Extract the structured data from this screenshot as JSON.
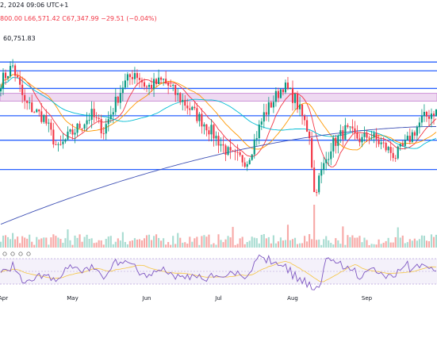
{
  "header": {
    "line1": "2, 2024 09:06 UTC+1",
    "open_tail": "800.00",
    "low": "L66,571.42",
    "close": "C67,347.99",
    "change": "−29.51 (−0.04%)"
  },
  "annotation": {
    "value": "60,751.83"
  },
  "colors": {
    "up": "#089981",
    "down": "#f23645",
    "vol_up": "#a8dcd1",
    "vol_down": "#f7a9a7",
    "level": "#2962ff",
    "zone": "#ce93d8",
    "ma_fast": "#f23645",
    "ma_mid": "#ff9800",
    "ma_slow": "#00bcd4",
    "ma_long": "#3f51b5",
    "rsi": "#7e57c2",
    "rsi_signal": "#f5c542"
  },
  "chart_data": {
    "type": "candlestick",
    "x_axis_labels": [
      "Apr",
      "May",
      "Jun",
      "Jul",
      "Aug",
      "Sep"
    ],
    "horizontal_levels": [
      72200,
      71300,
      69500,
      66700,
      64200,
      61200
    ],
    "resistance_zone": [
      69000,
      68200
    ],
    "price_range_visible": [
      55000,
      74000
    ],
    "annotated_low": 60751.83,
    "last_close": 67347.99,
    "close_path_anchors": [
      {
        "day": 0,
        "close": 70200
      },
      {
        "day": 5,
        "close": 71800
      },
      {
        "day": 10,
        "close": 68000
      },
      {
        "day": 18,
        "close": 66500
      },
      {
        "day": 24,
        "close": 63200
      },
      {
        "day": 28,
        "close": 64500
      },
      {
        "day": 38,
        "close": 66800
      },
      {
        "day": 43,
        "close": 65200
      },
      {
        "day": 51,
        "close": 69800
      },
      {
        "day": 56,
        "close": 71200
      },
      {
        "day": 61,
        "close": 69600
      },
      {
        "day": 68,
        "close": 70300
      },
      {
        "day": 76,
        "close": 68200
      },
      {
        "day": 86,
        "close": 65700
      },
      {
        "day": 96,
        "close": 62600
      },
      {
        "day": 103,
        "close": 62100
      },
      {
        "day": 110,
        "close": 66800
      },
      {
        "day": 118,
        "close": 69800
      },
      {
        "day": 123,
        "close": 68400
      },
      {
        "day": 129,
        "close": 64800
      },
      {
        "day": 131,
        "close": 58800
      },
      {
        "day": 133,
        "close": 60200
      },
      {
        "day": 138,
        "close": 63600
      },
      {
        "day": 144,
        "close": 65200
      },
      {
        "day": 151,
        "close": 64200
      },
      {
        "day": 154,
        "close": 64800
      },
      {
        "day": 161,
        "close": 63400
      },
      {
        "day": 165,
        "close": 62600
      },
      {
        "day": 169,
        "close": 63700
      },
      {
        "day": 176,
        "close": 66300
      },
      {
        "day": 182,
        "close": 67348
      }
    ],
    "volume_indicator": {
      "present": true
    },
    "rsi_indicator": {
      "present": true,
      "band": [
        30,
        70
      ]
    }
  }
}
